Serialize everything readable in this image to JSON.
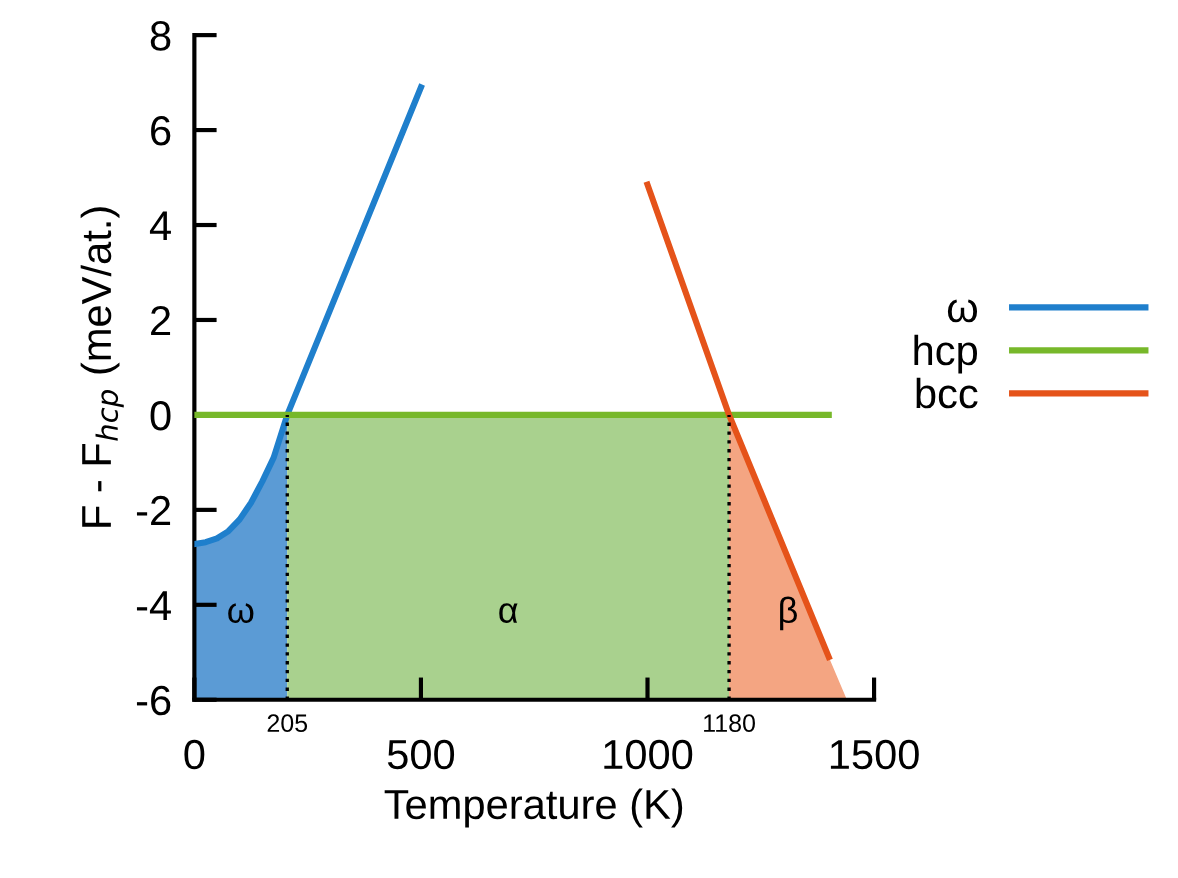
{
  "chart_data": {
    "type": "line",
    "xlabel": "Temperature (K)",
    "ylabel": "F - F$_{hcp}$ (meV/at.)",
    "xlim": [
      0,
      1500
    ],
    "xticks": [
      0,
      500,
      1000,
      1500
    ],
    "ylim": [
      -6,
      8
    ],
    "yticks": [
      -6,
      -4,
      -2,
      0,
      2,
      4,
      6,
      8
    ],
    "grid": false,
    "legend": "right",
    "line_style": "solid",
    "marker": "none",
    "series": [
      {
        "type": "area",
        "color": "#5b9bd5",
        "x": [
          0,
          25,
          50,
          75,
          100,
          125,
          150,
          175,
          205,
          205,
          0
        ],
        "values": [
          -2.72,
          -2.68,
          -2.6,
          -2.45,
          -2.2,
          -1.85,
          -1.4,
          -0.9,
          0,
          -6,
          -6
        ]
      },
      {
        "type": "area",
        "color": "#a9d18e",
        "x": [
          205,
          1180,
          1180,
          205
        ],
        "values": [
          0,
          0,
          -6,
          -6
        ]
      },
      {
        "type": "area",
        "color": "#f4a582",
        "x": [
          1180,
          1400,
          1440,
          1180
        ],
        "values": [
          0,
          -5.1,
          -6,
          -6
        ]
      },
      {
        "name": "ω",
        "color": "#1f7fcc",
        "x": [
          0,
          25,
          50,
          75,
          100,
          125,
          150,
          175,
          205,
          500
        ],
        "values": [
          -2.72,
          -2.68,
          -2.6,
          -2.45,
          -2.2,
          -1.85,
          -1.4,
          -0.9,
          0,
          6.9
        ]
      },
      {
        "name": "hcp",
        "color": "#77b82a",
        "x": [
          0,
          1400
        ],
        "values": [
          0,
          0
        ]
      },
      {
        "name": "bcc",
        "color": "#e5531a",
        "x": [
          1000,
          1180,
          1400
        ],
        "values": [
          4.85,
          0,
          -5.1
        ]
      }
    ],
    "annotations": [
      "ω",
      "α",
      "β"
    ],
    "ref_lines": [
      {
        "axis": "x",
        "value": 205,
        "label": "205",
        "line_style": "dotted"
      },
      {
        "axis": "x",
        "value": 1180,
        "label": "1180",
        "line_style": "dotted"
      }
    ]
  }
}
